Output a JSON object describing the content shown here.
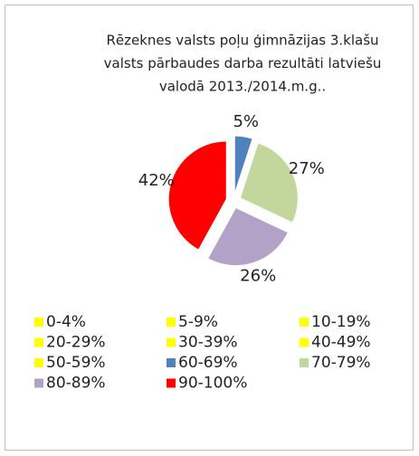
{
  "chart_data": {
    "type": "pie",
    "title": [
      "Rēzeknes valsts poļu ģimnāzijas 3.klašu",
      "valsts pārbaudes darba rezultāti  latviešu",
      "valodā 2013./2014.m.g.."
    ],
    "categories": [
      "0-4%",
      "5-9%",
      "10-19%",
      "20-29%",
      "30-39%",
      "40-49%",
      "50-59%",
      "60-69%",
      "70-79%",
      "80-89%",
      "90-100%"
    ],
    "values": [
      0,
      0,
      0,
      0,
      0,
      0,
      0,
      5,
      27,
      26,
      42
    ],
    "value_labels": [
      null,
      null,
      null,
      null,
      null,
      null,
      null,
      "5%",
      "27%",
      "26%",
      "42%"
    ],
    "colors": [
      "#ffff00",
      "#ffff00",
      "#ffff00",
      "#ffff00",
      "#ffff00",
      "#ffff00",
      "#ffff00",
      "#4f81bd",
      "#c3d69b",
      "#b3a2c7",
      "#ff0000"
    ],
    "legend": "bottom"
  }
}
